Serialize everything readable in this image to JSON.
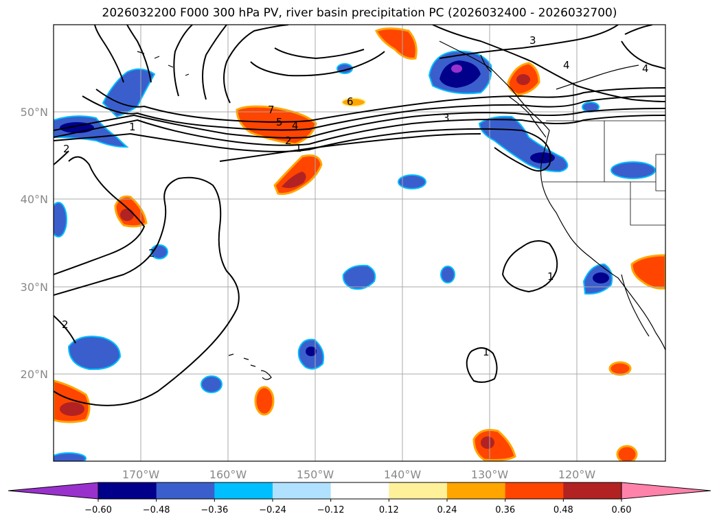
{
  "title": "2026032200 F000 300 hPa PV, river basin precipitation PC (2026032400 - 2026032700)",
  "map": {
    "lon_labels": [
      "170°W",
      "160°W",
      "150°W",
      "140°W",
      "130°W",
      "120°W"
    ],
    "lat_labels": [
      "50°N",
      "40°N",
      "30°N",
      "20°N"
    ]
  },
  "colorbar": {
    "colors": [
      "#9932cc",
      "#00008b",
      "#3a5fcd",
      "#00bfff",
      "#b0e2ff",
      "#ffffff",
      "#fff09a",
      "#ffa500",
      "#ff4500",
      "#b22222",
      "#ff82ab"
    ],
    "tick_labels": [
      "−0.60",
      "−0.48",
      "−0.36",
      "−0.24",
      "−0.12",
      "0.12",
      "0.24",
      "0.36",
      "0.48",
      "0.60"
    ]
  },
  "contour_labels": [
    "3",
    "4",
    "4",
    "6",
    "7",
    "5",
    "4",
    "2",
    "1",
    "3",
    "1",
    "2",
    "2",
    "1",
    "1",
    "2"
  ]
}
